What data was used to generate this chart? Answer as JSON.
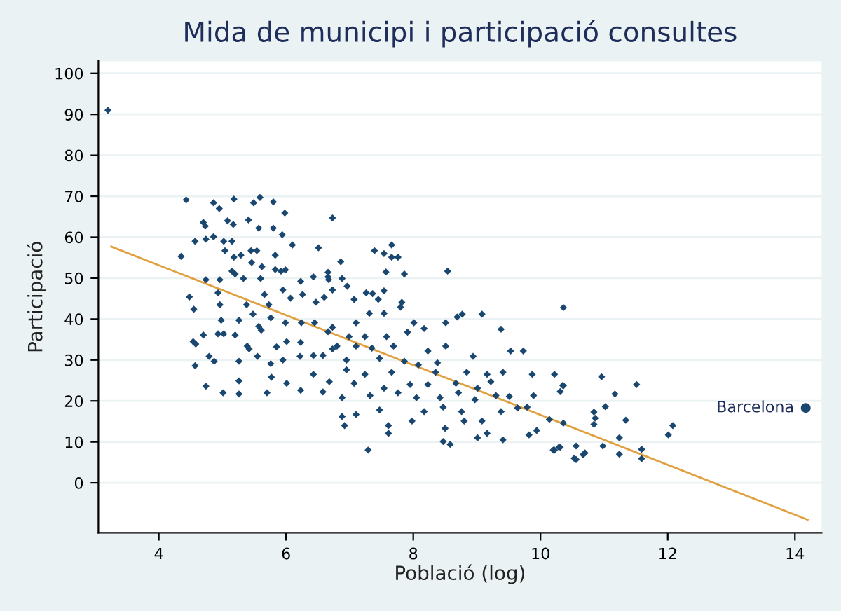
{
  "chart_data": {
    "type": "scatter",
    "title": "Mida de municipi i participació consultes",
    "xlabel": "Població (log)",
    "ylabel": "Participació",
    "xlim": [
      3.05,
      14.42
    ],
    "ylim": [
      -12.2,
      103
    ],
    "xticks": [
      4,
      6,
      8,
      10,
      12,
      14
    ],
    "yticks": [
      0,
      10,
      20,
      30,
      40,
      50,
      60,
      70,
      80,
      90,
      100
    ],
    "grid": "y",
    "legend": false,
    "series": [
      {
        "marker": "diamond",
        "color": "#1a476f",
        "x": [
          3.2,
          4.43,
          4.86,
          4.95,
          5.18,
          5.49,
          5.59,
          5.8,
          4.7,
          4.73,
          5.08,
          5.17,
          5.41,
          5.57,
          5.8,
          5.98,
          4.57,
          4.74,
          4.86,
          5.02,
          5.04,
          5.15,
          5.94,
          6.1,
          6.51,
          6.73,
          4.35,
          5.18,
          5.29,
          5.45,
          5.54,
          5.46,
          5.62,
          5.83,
          5.83,
          5.92,
          5.15,
          5.2,
          5.33,
          4.74,
          4.96,
          5.6,
          5.99,
          6.23,
          6.43,
          6.66,
          6.67,
          4.48,
          4.55,
          4.93,
          4.96,
          5.38,
          5.66,
          5.73,
          5.95,
          6.07,
          6.26,
          6.47,
          6.6,
          6.73,
          4.98,
          5.26,
          5.48,
          5.57,
          5.76,
          5.99,
          6.24,
          6.45,
          6.66,
          4.54,
          4.58,
          4.7,
          4.93,
          5.02,
          5.2,
          5.39,
          5.42,
          5.61,
          5.85,
          6.01,
          6.23,
          6.43,
          6.58,
          6.73,
          4.79,
          4.87,
          5.26,
          5.55,
          5.76,
          5.95,
          6.22,
          6.43,
          4.57,
          4.74,
          5.01,
          5.26,
          5.26,
          5.7,
          5.77,
          6.01,
          6.23,
          6.58,
          7.66,
          7.39,
          7.54,
          7.66,
          7.76,
          6.86,
          8.54,
          7.57,
          7.86,
          6.66,
          6.88,
          6.96,
          7.26,
          7.36,
          7.54,
          7.45,
          7.07,
          7.82,
          7.31,
          7.54,
          7.8,
          8.69,
          8.77,
          9.08,
          10.36,
          6.73,
          7.1,
          8.01,
          8.51,
          7.91,
          8.17,
          9.38,
          6.99,
          7.24,
          7.58,
          6.8,
          7.1,
          7.35,
          7.69,
          8.23,
          8.51,
          9.53,
          9.73,
          6.95,
          7.47,
          7.86,
          8.38,
          8.94,
          6.95,
          7.24,
          7.66,
          8.08,
          8.35,
          8.84,
          9.16,
          9.41,
          9.87,
          10.22,
          6.68,
          7.07,
          7.54,
          7.95,
          8.23,
          8.67,
          9.01,
          9.22,
          10.35,
          6.88,
          7.32,
          7.76,
          8.05,
          8.42,
          8.71,
          8.97,
          9.3,
          9.51,
          9.89,
          6.88,
          7.1,
          7.47,
          7.98,
          8.17,
          8.47,
          8.76,
          9.08,
          9.38,
          9.64,
          9.79,
          6.92,
          7.61,
          8.5,
          8.8,
          9.16,
          9.41,
          9.82,
          9.94,
          10.14,
          7.61,
          8.47,
          8.58,
          7.29,
          9.01,
          10.22,
          10.31,
          10.53,
          10.96,
          11.51,
          10.31,
          10.36,
          11.17,
          11.02,
          10.84,
          10.86,
          10.84,
          11.34,
          10.36,
          11.24,
          12.08,
          12.01,
          10.98,
          10.56,
          10.29,
          10.2,
          10.7,
          10.67,
          10.56,
          11.24,
          11.59,
          11.59
        ],
        "values": [
          91,
          69.1,
          68.4,
          67,
          69.3,
          68.4,
          69.7,
          68.6,
          63.6,
          62.7,
          64,
          63.1,
          64.2,
          62.2,
          62.2,
          65.9,
          59,
          59.5,
          60.1,
          59,
          56.7,
          59,
          60.6,
          58.1,
          57.4,
          64.7,
          55.3,
          55.1,
          55.6,
          56.7,
          56.7,
          53.8,
          52.8,
          55.6,
          52.1,
          51.7,
          51.7,
          51,
          49.9,
          49.6,
          49.6,
          49.9,
          52,
          49.2,
          50.3,
          51.4,
          49.6,
          45.4,
          42.4,
          46.4,
          43.5,
          43.5,
          46,
          43.5,
          47.1,
          45.1,
          46,
          44.1,
          45.3,
          47.1,
          39.7,
          39.7,
          41.2,
          38.2,
          40.3,
          39.1,
          39.1,
          39.1,
          36.9,
          34.5,
          33.9,
          36.1,
          36.4,
          36.4,
          36.1,
          33.4,
          32.7,
          37.3,
          33.2,
          34.5,
          34.3,
          31.1,
          31.1,
          32.7,
          30.9,
          29.7,
          29.7,
          30.9,
          29.1,
          30,
          30.9,
          26.5,
          28.6,
          23.6,
          22,
          21.7,
          24.9,
          22,
          25.8,
          24.3,
          22.6,
          22.2,
          58.1,
          56.7,
          56,
          55.1,
          55.1,
          54,
          51.7,
          51.5,
          51,
          50.3,
          49.9,
          48,
          46.4,
          46.2,
          46.9,
          44.8,
          44.8,
          44.1,
          41.4,
          41.4,
          42.9,
          40.5,
          41.2,
          41.2,
          42.8,
          38,
          39.1,
          39.1,
          39.1,
          36.8,
          37.7,
          37.5,
          35.7,
          35.7,
          35.7,
          33.4,
          33.4,
          32.9,
          33.4,
          32.2,
          33.4,
          32.2,
          32.2,
          30,
          30.4,
          29.7,
          29.3,
          30.9,
          27.6,
          26.5,
          27,
          28.8,
          27,
          27,
          26.5,
          27,
          26.5,
          26.5,
          24.7,
          24.3,
          23.1,
          24,
          24,
          24.3,
          23.1,
          24.7,
          23.8,
          20.8,
          21.3,
          22,
          20.8,
          20.8,
          22,
          20.3,
          21.3,
          21.1,
          21.3,
          16.2,
          16.7,
          17.8,
          15.1,
          17.4,
          18.5,
          17.4,
          15.1,
          17.4,
          18.3,
          18.5,
          14,
          14,
          13.3,
          15.1,
          12.1,
          10.5,
          11.7,
          12.8,
          15.5,
          12.1,
          10.1,
          9.4,
          8,
          11,
          8,
          8.7,
          6,
          25.9,
          24,
          22.3,
          23.7,
          21.7,
          18.6,
          17.3,
          15.8,
          14.3,
          15.3,
          14.6,
          11,
          14,
          11.7,
          9,
          9,
          8.7,
          8,
          7.3,
          6.9,
          5.7,
          7,
          8.2,
          5.9
        ]
      },
      {
        "type": "scatter",
        "marker": "circle",
        "color": "#1a476f",
        "x": [
          14.17
        ],
        "values": [
          18.3
        ]
      },
      {
        "type": "line",
        "marker": "none",
        "color": "#e0a040",
        "x": [
          3.25,
          14.2
        ],
        "values": [
          57.7,
          -9
        ]
      }
    ],
    "annotations": [
      {
        "text": "Barcelona",
        "x": 14.17,
        "y": 18.3
      }
    ]
  }
}
